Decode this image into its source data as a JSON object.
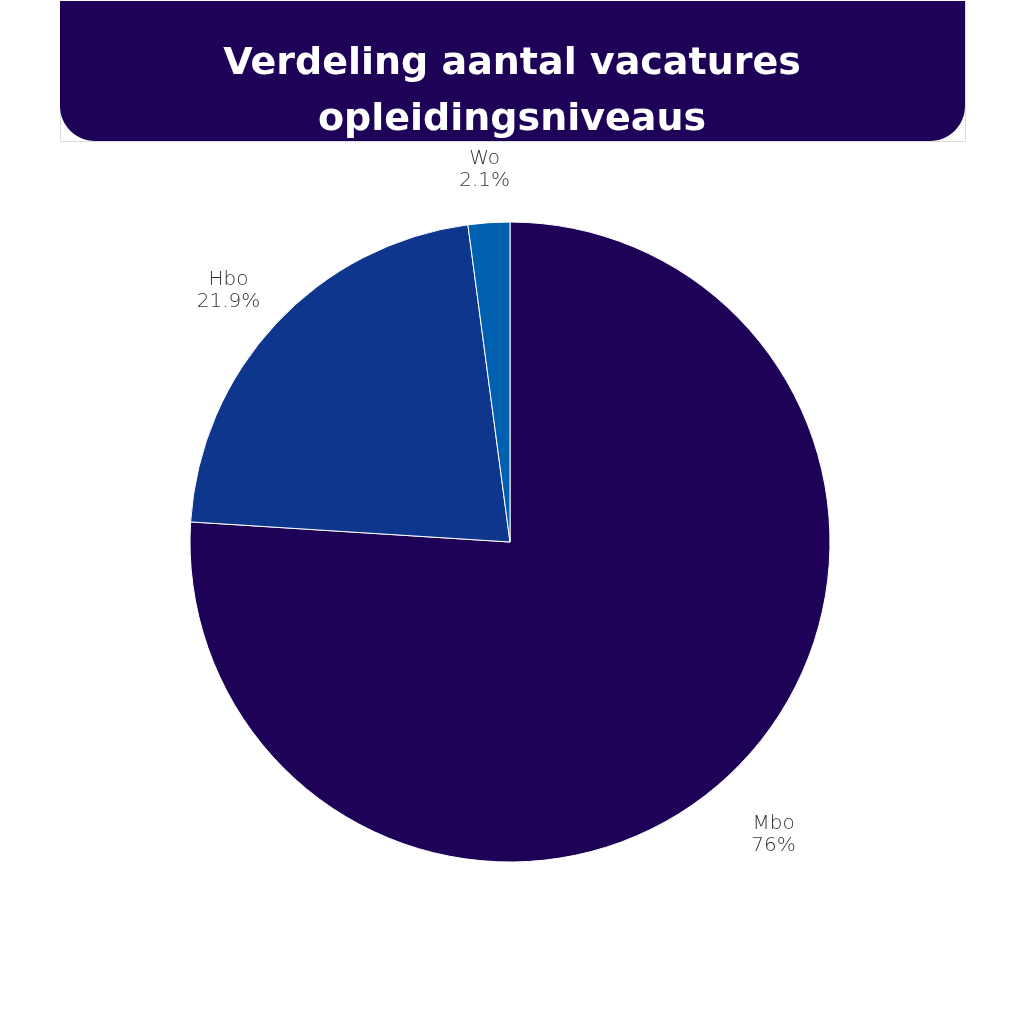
{
  "chart_data": {
    "type": "pie",
    "title": "Verdeling aantal vacatures opleidingsniveaus",
    "categories": [
      "Mbo",
      "Hbo",
      "Wo"
    ],
    "values": [
      76,
      21.9,
      2.1
    ],
    "colors": [
      "#1e0258",
      "#0d368c",
      "#0060b0"
    ],
    "value_labels": [
      "76%",
      "21.9%",
      "2.1%"
    ],
    "legend": false
  }
}
